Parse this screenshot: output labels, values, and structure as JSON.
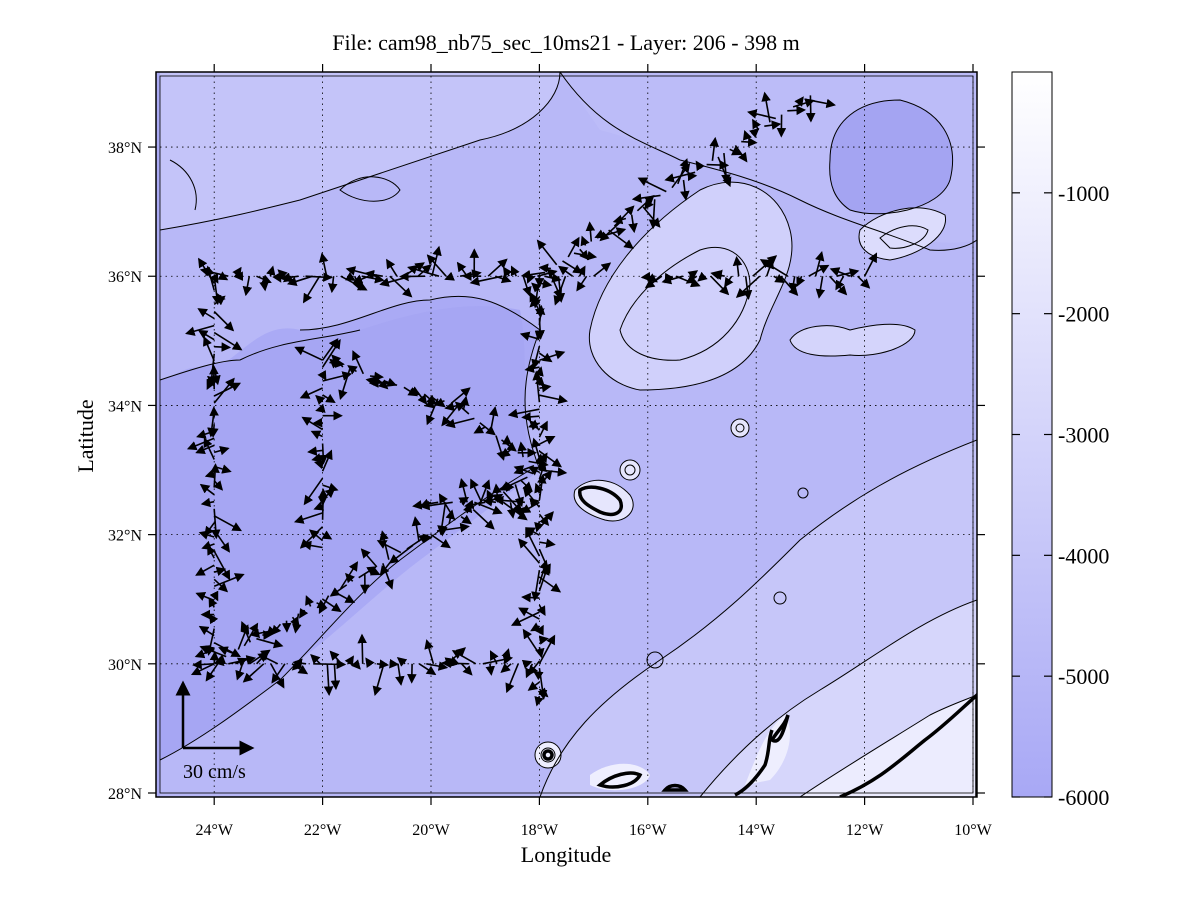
{
  "title": "File: cam98_nb75_sec_10ms21 - Layer: 206 - 398 m",
  "xlabel": "Longitude",
  "ylabel": "Latitude",
  "x_ticks": [
    {
      "value": -24,
      "label": "24°W"
    },
    {
      "value": -22,
      "label": "22°W"
    },
    {
      "value": -20,
      "label": "20°W"
    },
    {
      "value": -18,
      "label": "18°W"
    },
    {
      "value": -16,
      "label": "16°W"
    },
    {
      "value": -14,
      "label": "14°W"
    },
    {
      "value": -12,
      "label": "12°W"
    },
    {
      "value": -10,
      "label": "10°W"
    }
  ],
  "y_ticks": [
    {
      "value": 28,
      "label": "28°N"
    },
    {
      "value": 30,
      "label": "30°N"
    },
    {
      "value": 32,
      "label": "32°N"
    },
    {
      "value": 34,
      "label": "34°N"
    },
    {
      "value": 36,
      "label": "36°N"
    },
    {
      "value": 38,
      "label": "38°N"
    }
  ],
  "colorbar": {
    "ticks": [
      "-1000",
      "-2000",
      "-3000",
      "-4000",
      "-5000",
      "-6000"
    ],
    "range": [
      -6000,
      0
    ],
    "color_deep": "#a8a8f5",
    "color_shallow": "#ffffff"
  },
  "scale_arrow": {
    "label": "30 cm/s",
    "speed_cm_s": 30
  },
  "map": {
    "lon_range": [
      -25,
      -10
    ],
    "lat_range": [
      28,
      39.1
    ],
    "grid": "dotted",
    "colors": {
      "deep": "#aaaaf5",
      "mid": "#c0c0f8",
      "shallow": "#dcdcfb",
      "very_shallow": "#f0f0fe",
      "land_line": "#000000"
    }
  },
  "vectors": {
    "description_free": true,
    "tracks": [
      {
        "lon": [
          -24.0,
          -24.0
        ],
        "lat": [
          30.0,
          36.0
        ]
      },
      {
        "lon": [
          -24.0,
          -17.0
        ],
        "lat": [
          36.0,
          36.0
        ]
      },
      {
        "lon": [
          -16.0,
          -12.0
        ],
        "lat": [
          36.0,
          36.0
        ]
      },
      {
        "lon": [
          -22.0,
          -22.0
        ],
        "lat": [
          31.8,
          34.7
        ]
      },
      {
        "lon": [
          -22.0,
          -19.5
        ],
        "lat": [
          34.7,
          34.0
        ]
      },
      {
        "lon": [
          -19.5,
          -18.0
        ],
        "lat": [
          34.0,
          33.0
        ]
      },
      {
        "lon": [
          -24.0,
          -18.0
        ],
        "lat": [
          30.0,
          30.0
        ]
      },
      {
        "lon": [
          -24.0,
          -18.0
        ],
        "lat": [
          30.0,
          33.0
        ]
      },
      {
        "lon": [
          -18.0,
          -18.0
        ],
        "lat": [
          29.5,
          36.0
        ]
      },
      {
        "lon": [
          -20.0,
          -18.0
        ],
        "lat": [
          32.5,
          32.5
        ]
      },
      {
        "lon": [
          -18.0,
          -13.0
        ],
        "lat": [
          36.0,
          38.8
        ]
      }
    ]
  }
}
